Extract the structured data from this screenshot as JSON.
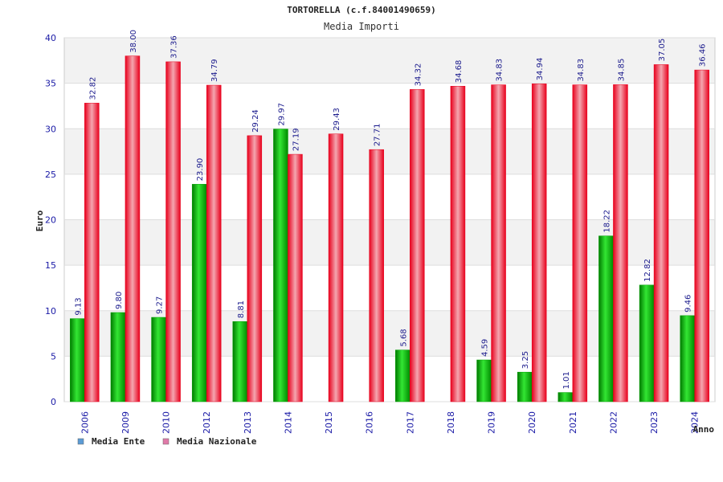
{
  "chart_data": {
    "type": "bar",
    "title": "TORTORELLA (c.f.84001490659)",
    "subtitle": "Media Importi",
    "ylabel": "Euro",
    "xlabel": "Anno",
    "ylim": [
      0,
      40
    ],
    "yticks": [
      "0",
      "5",
      "10",
      "15",
      "20",
      "25",
      "30",
      "35",
      "40"
    ],
    "categories": [
      "2006",
      "2009",
      "2010",
      "2012",
      "2013",
      "2014",
      "2015",
      "2016",
      "2017",
      "2018",
      "2019",
      "2020",
      "2021",
      "2022",
      "2023",
      "2024"
    ],
    "series": [
      {
        "name": "Media Ente",
        "color": "#00a000",
        "legend_color": "#5b9bd5",
        "values": [
          9.13,
          9.8,
          9.27,
          23.9,
          8.81,
          29.97,
          null,
          null,
          5.68,
          null,
          4.59,
          3.25,
          1.01,
          18.22,
          12.82,
          9.46
        ],
        "labels": [
          "9.13",
          "9.80",
          "9.27",
          "23.90",
          "8.81",
          "29.97",
          "",
          "",
          "5.68",
          "",
          "4.59",
          "3.25",
          "1.01",
          "18.22",
          "12.82",
          "9.46"
        ]
      },
      {
        "name": "Media Nazionale",
        "color": "#e8001c",
        "legend_color": "#e07aa8",
        "values": [
          32.82,
          38.0,
          37.36,
          34.79,
          29.24,
          27.19,
          29.43,
          27.71,
          34.32,
          34.68,
          34.83,
          34.94,
          34.83,
          34.85,
          37.05,
          36.46
        ],
        "labels": [
          "32.82",
          "38.00",
          "37.36",
          "34.79",
          "29.24",
          "27.19",
          "29.43",
          "27.71",
          "34.32",
          "34.68",
          "34.83",
          "34.94",
          "34.83",
          "34.85",
          "37.05",
          "36.46"
        ]
      }
    ],
    "grid": true,
    "legend": "bottom-left"
  }
}
